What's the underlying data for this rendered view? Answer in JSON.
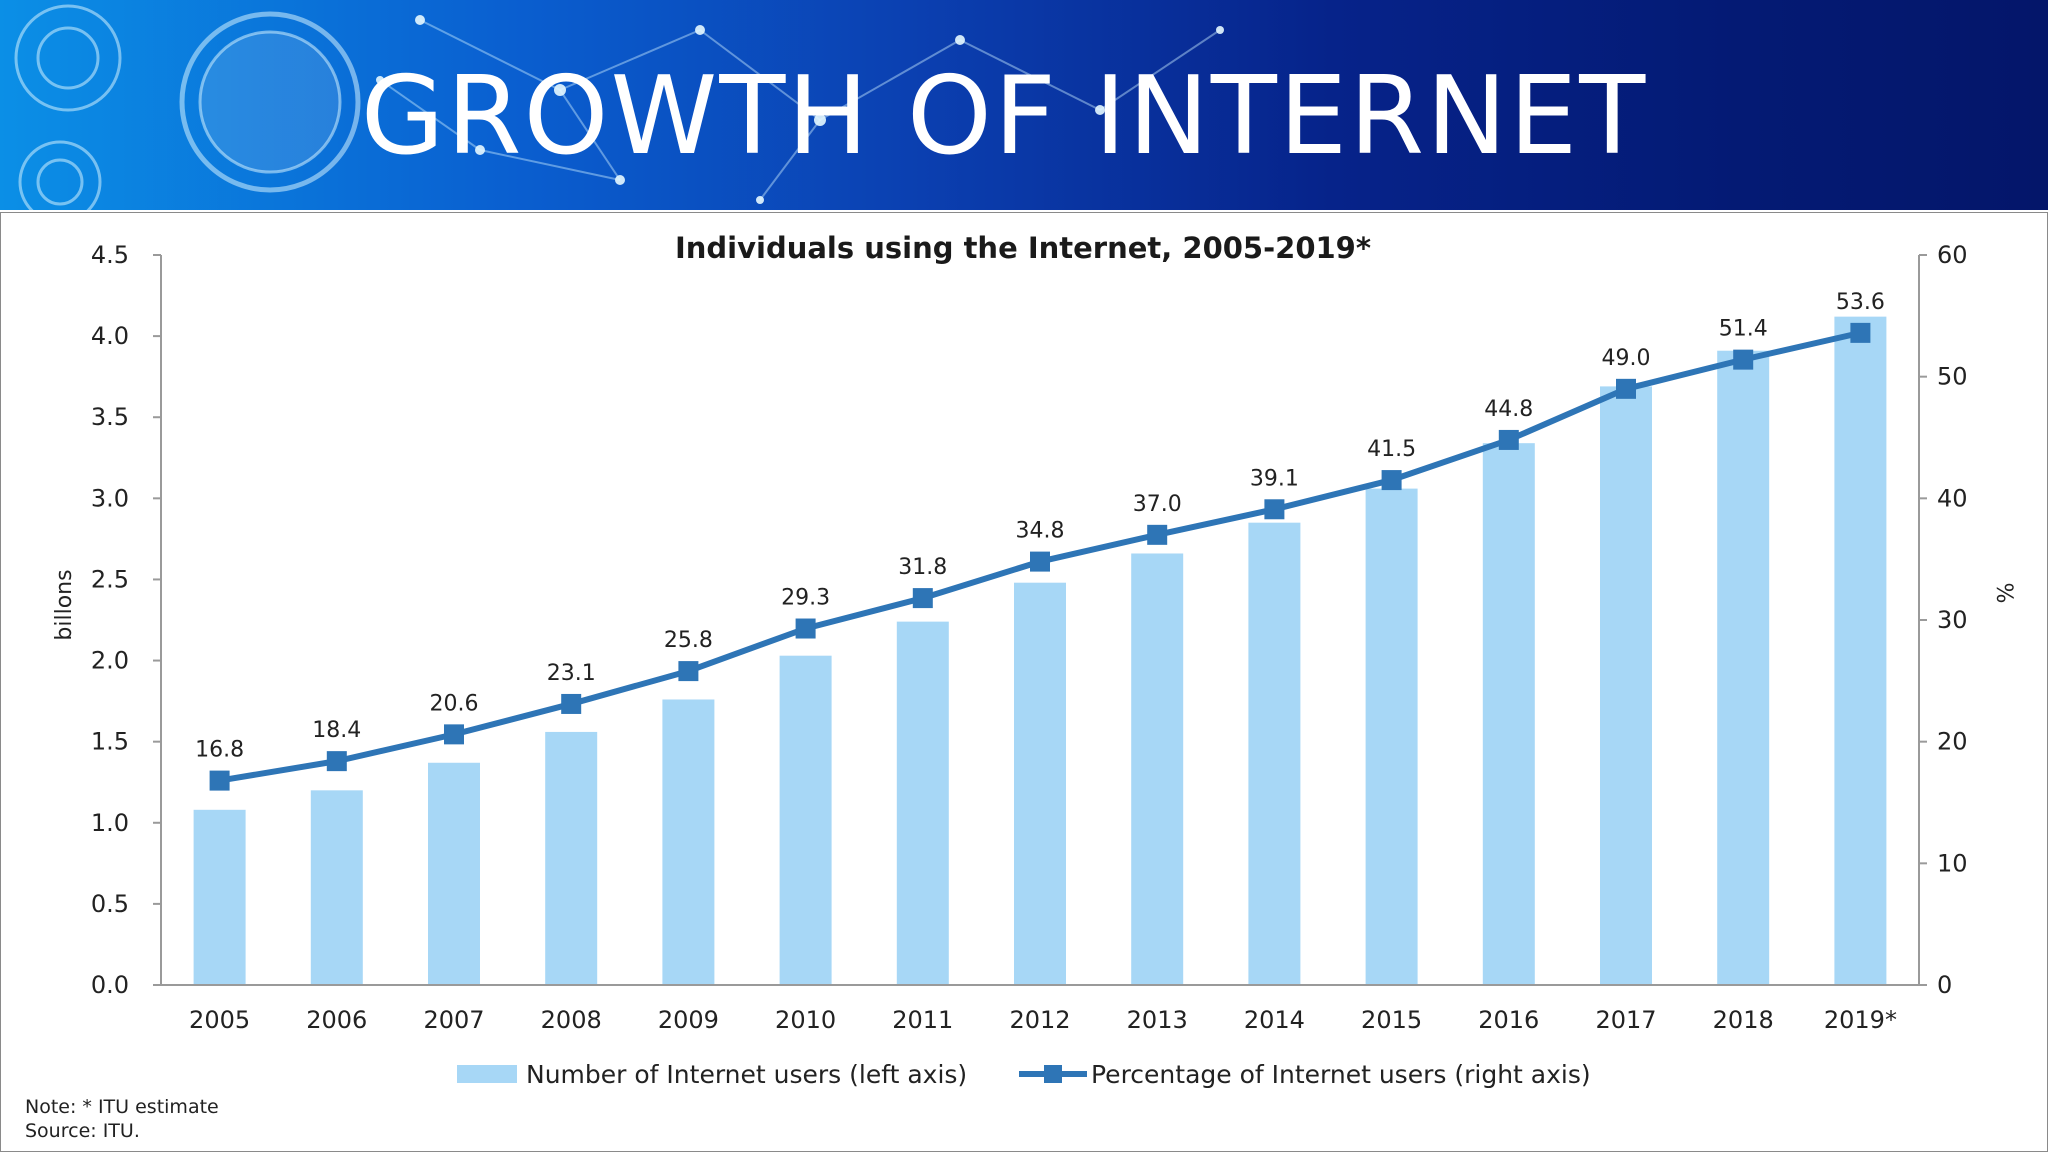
{
  "slide": {
    "title": "GROWTH  OF INTERNET"
  },
  "chart_data": {
    "type": "bar+line",
    "title": "Individuals using the Internet, 2005-2019*",
    "categories": [
      "2005",
      "2006",
      "2007",
      "2008",
      "2009",
      "2010",
      "2011",
      "2012",
      "2013",
      "2014",
      "2015",
      "2016",
      "2017",
      "2018",
      "2019*"
    ],
    "series": [
      {
        "name": "Number of Internet users (left axis)",
        "type": "bar",
        "axis": "left",
        "values": [
          1.08,
          1.2,
          1.37,
          1.56,
          1.76,
          2.03,
          2.24,
          2.48,
          2.66,
          2.85,
          3.06,
          3.34,
          3.69,
          3.91,
          4.12
        ],
        "color": "#a7d7f6"
      },
      {
        "name": "Percentage of Internet users (right axis)",
        "type": "line",
        "axis": "right",
        "values": [
          16.8,
          18.4,
          20.6,
          23.1,
          25.8,
          29.3,
          31.8,
          34.8,
          37.0,
          39.1,
          41.5,
          44.8,
          49.0,
          51.4,
          53.6
        ],
        "labels": [
          "16.8",
          "18.4",
          "20.6",
          "23.1",
          "25.8",
          "29.3",
          "31.8",
          "34.8",
          "37.0",
          "39.1",
          "41.5",
          "44.8",
          "49.0",
          "51.4",
          "53.6"
        ],
        "color": "#2e75b6"
      }
    ],
    "left_axis": {
      "label": "billons",
      "ylim": [
        0,
        4.5
      ],
      "ticks": [
        "0.0",
        "0.5",
        "1.0",
        "1.5",
        "2.0",
        "2.5",
        "3.0",
        "3.5",
        "4.0",
        "4.5"
      ]
    },
    "right_axis": {
      "label": "%",
      "ylim": [
        0,
        60
      ],
      "ticks": [
        "0",
        "10",
        "20",
        "30",
        "40",
        "50",
        "60"
      ]
    },
    "legend_position": "bottom",
    "grid": false,
    "notes": [
      "Note: * ITU estimate",
      "Source: ITU."
    ]
  }
}
